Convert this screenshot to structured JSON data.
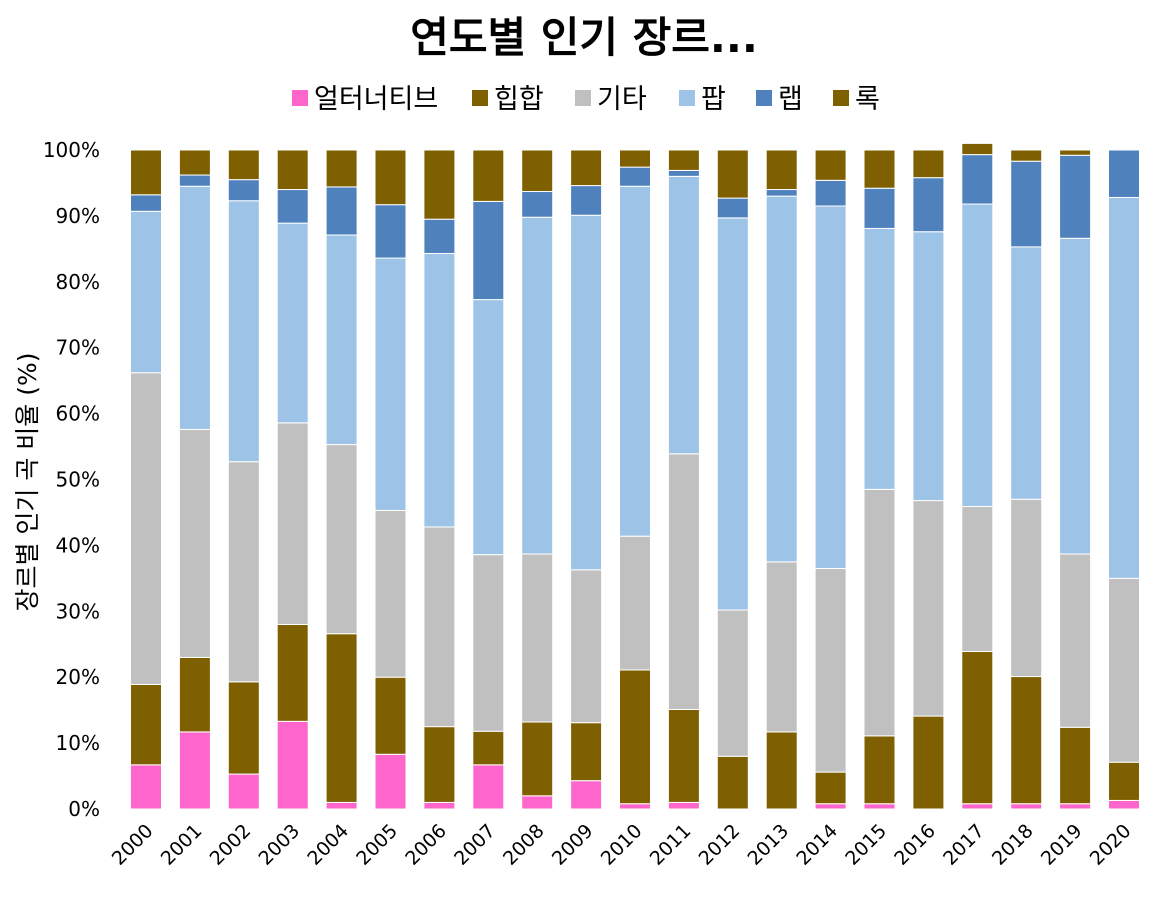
{
  "chart_data": {
    "type": "bar",
    "stacked": true,
    "title": "연도별 인기 장르...",
    "xlabel": "",
    "ylabel": "장르별 인기 곡 비율 (%)",
    "ylim": [
      0,
      100
    ],
    "yticks": [
      "0%",
      "10%",
      "20%",
      "30%",
      "40%",
      "50%",
      "60%",
      "70%",
      "80%",
      "90%",
      "100%"
    ],
    "grid": false,
    "legend_position": "top",
    "categories": [
      "2000",
      "2001",
      "2002",
      "2003",
      "2004",
      "2005",
      "2006",
      "2007",
      "2008",
      "2009",
      "2010",
      "2011",
      "2012",
      "2013",
      "2014",
      "2015",
      "2016",
      "2017",
      "2018",
      "2019",
      "2020"
    ],
    "series": [
      {
        "name": "얼터너티브",
        "color": "#FF66CC",
        "values": [
          6.7,
          11.7,
          5.3,
          13.3,
          1.0,
          8.3,
          1.0,
          6.7,
          2.0,
          4.3,
          0.8,
          1.0,
          0.0,
          0.0,
          0.8,
          0.8,
          0.0,
          0.8,
          0.8,
          0.8,
          1.3
        ]
      },
      {
        "name": "힙합",
        "color": "#7F6000",
        "values": [
          12.2,
          11.3,
          14.0,
          14.7,
          25.6,
          11.7,
          11.5,
          5.1,
          11.2,
          8.8,
          20.3,
          14.1,
          8.0,
          11.7,
          4.8,
          10.3,
          14.1,
          23.1,
          19.3,
          11.6,
          5.8
        ]
      },
      {
        "name": "기타",
        "color": "#C0C0C0",
        "values": [
          47.3,
          34.6,
          33.4,
          30.6,
          28.7,
          25.3,
          30.3,
          26.8,
          25.5,
          23.2,
          20.3,
          38.8,
          22.2,
          25.8,
          30.9,
          37.4,
          32.7,
          22.0,
          26.9,
          26.3,
          27.9
        ]
      },
      {
        "name": "팝",
        "color": "#9DC3E6",
        "values": [
          24.5,
          36.9,
          39.6,
          30.3,
          31.8,
          38.3,
          41.5,
          38.7,
          51.1,
          53.8,
          53.1,
          42.1,
          59.5,
          55.5,
          55.0,
          39.6,
          40.8,
          45.9,
          38.3,
          47.9,
          57.8
        ]
      },
      {
        "name": "랩",
        "color": "#4F81BD",
        "values": [
          2.5,
          1.7,
          3.2,
          5.1,
          7.3,
          8.1,
          5.2,
          14.9,
          3.9,
          4.5,
          2.9,
          0.9,
          3.0,
          1.0,
          3.9,
          6.1,
          8.2,
          7.5,
          13.0,
          12.6,
          7.2
        ]
      },
      {
        "name": "록",
        "color": "#7F6000",
        "values": [
          6.8,
          3.8,
          4.5,
          6.0,
          5.6,
          8.3,
          10.5,
          7.8,
          6.3,
          5.4,
          2.6,
          3.1,
          7.3,
          6.0,
          4.6,
          5.8,
          4.2,
          1.7,
          1.7,
          0.8,
          0.0
        ]
      }
    ]
  }
}
